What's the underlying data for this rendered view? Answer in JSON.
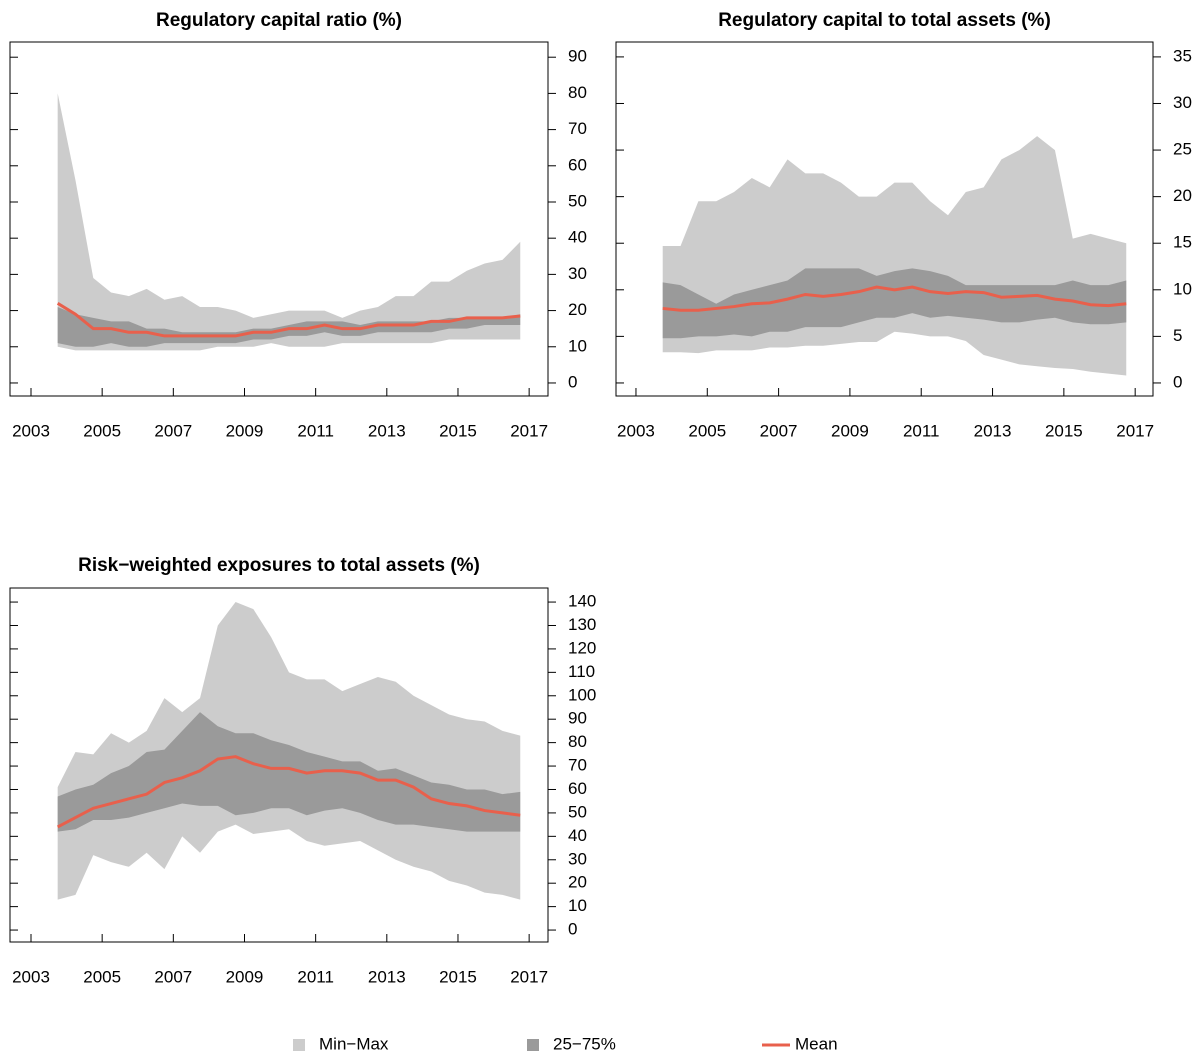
{
  "chart_data": [
    {
      "type": "band",
      "title": "Regulatory capital ratio (%)",
      "x": [
        2003.75,
        2004.25,
        2004.75,
        2005.25,
        2005.75,
        2006.25,
        2006.75,
        2007.25,
        2007.75,
        2008.25,
        2008.75,
        2009.25,
        2009.75,
        2010.25,
        2010.75,
        2011.25,
        2011.75,
        2012.25,
        2012.75,
        2013.25,
        2013.75,
        2014.25,
        2014.75,
        2015.25,
        2015.75,
        2016.25,
        2016.75
      ],
      "series": [
        {
          "name": "Min−Max",
          "color": "#cccccc",
          "low": [
            10,
            9,
            9,
            9,
            9,
            9,
            9,
            9,
            9,
            10,
            10,
            10,
            11,
            10,
            10,
            10,
            11,
            11,
            11,
            11,
            11,
            11,
            12,
            12,
            12,
            12,
            12
          ],
          "high": [
            80,
            56,
            29,
            25,
            24,
            26,
            23,
            24,
            21,
            21,
            20,
            18,
            19,
            20,
            20,
            20,
            18,
            20,
            21,
            24,
            24,
            28,
            28,
            31,
            33,
            34,
            39
          ]
        },
        {
          "name": "25−75%",
          "color": "#9a9a9a",
          "low": [
            11,
            10,
            10,
            11,
            10,
            10,
            11,
            11,
            11,
            11,
            11,
            12,
            12,
            13,
            13,
            14,
            13,
            13,
            14,
            14,
            14,
            14,
            15,
            15,
            16,
            16,
            16
          ],
          "high": [
            21,
            19,
            18,
            17,
            17,
            15,
            15,
            14,
            14,
            14,
            14,
            15,
            15,
            16,
            17,
            17,
            17,
            16,
            17,
            17,
            17,
            17,
            18,
            18,
            18,
            18,
            19
          ]
        },
        {
          "name": "Mean",
          "color": "#e8604c",
          "values": [
            22,
            19,
            15,
            15,
            14,
            14,
            13,
            13,
            13,
            13,
            13,
            14,
            14,
            15,
            15,
            16,
            15,
            15,
            16,
            16,
            16,
            17,
            17,
            18,
            18,
            18,
            18.5
          ]
        }
      ],
      "xlim": [
        2002.41,
        2017.53
      ],
      "xticks": [
        2003,
        2005,
        2007,
        2009,
        2011,
        2013,
        2015,
        2017
      ],
      "ylim": [
        -3.6,
        94.2
      ],
      "yticks": [
        0,
        10,
        20,
        30,
        40,
        50,
        60,
        70,
        80,
        90
      ]
    },
    {
      "type": "band",
      "title": "Regulatory capital to total assets (%)",
      "x": [
        2003.75,
        2004.25,
        2004.75,
        2005.25,
        2005.75,
        2006.25,
        2006.75,
        2007.25,
        2007.75,
        2008.25,
        2008.75,
        2009.25,
        2009.75,
        2010.25,
        2010.75,
        2011.25,
        2011.75,
        2012.25,
        2012.75,
        2013.25,
        2013.75,
        2014.25,
        2014.75,
        2015.25,
        2015.75,
        2016.25,
        2016.75
      ],
      "series": [
        {
          "name": "Min−Max",
          "color": "#cccccc",
          "low": [
            3.3,
            3.3,
            3.2,
            3.5,
            3.5,
            3.5,
            3.8,
            3.8,
            4,
            4,
            4.2,
            4.4,
            4.4,
            5.5,
            5.3,
            5,
            5,
            4.5,
            3,
            2.5,
            2,
            1.8,
            1.6,
            1.5,
            1.2,
            1,
            0.8
          ],
          "high": [
            14.7,
            14.7,
            19.5,
            19.5,
            20.5,
            22,
            21,
            24,
            22.5,
            22.5,
            21.5,
            20,
            20,
            21.5,
            21.5,
            19.5,
            18,
            20.5,
            21,
            24,
            25,
            26.5,
            25,
            15.5,
            16,
            15.5,
            15
          ]
        },
        {
          "name": "25−75%",
          "color": "#9a9a9a",
          "low": [
            4.8,
            4.8,
            5,
            5,
            5.2,
            5,
            5.5,
            5.5,
            6,
            6,
            6,
            6.5,
            7,
            7,
            7.5,
            7,
            7.2,
            7,
            6.8,
            6.5,
            6.5,
            6.8,
            7,
            6.5,
            6.3,
            6.3,
            6.5
          ],
          "high": [
            10.8,
            10.5,
            9.5,
            8.5,
            9.5,
            10,
            10.5,
            11,
            12.3,
            12.3,
            12.3,
            12.3,
            11.5,
            12,
            12.3,
            12,
            11.5,
            10.5,
            10.5,
            10.5,
            10.5,
            10.5,
            10.5,
            11,
            10.5,
            10.5,
            11
          ]
        },
        {
          "name": "Mean",
          "color": "#e8604c",
          "values": [
            8,
            7.8,
            7.8,
            8,
            8.2,
            8.5,
            8.6,
            9,
            9.5,
            9.3,
            9.5,
            9.8,
            10.3,
            10,
            10.3,
            9.8,
            9.6,
            9.8,
            9.7,
            9.2,
            9.3,
            9.4,
            9,
            8.8,
            8.4,
            8.3,
            8.5
          ]
        }
      ],
      "xlim": [
        2002.44,
        2017.5
      ],
      "xticks": [
        2003,
        2005,
        2007,
        2009,
        2011,
        2013,
        2015,
        2017
      ],
      "ylim": [
        -1.4,
        36.6
      ],
      "yticks": [
        0,
        5,
        10,
        15,
        20,
        25,
        30,
        35
      ]
    },
    {
      "type": "band",
      "title": "Risk−weighted exposures to total assets (%)",
      "x": [
        2003.75,
        2004.25,
        2004.75,
        2005.25,
        2005.75,
        2006.25,
        2006.75,
        2007.25,
        2007.75,
        2008.25,
        2008.75,
        2009.25,
        2009.75,
        2010.25,
        2010.75,
        2011.25,
        2011.75,
        2012.25,
        2012.75,
        2013.25,
        2013.75,
        2014.25,
        2014.75,
        2015.25,
        2015.75,
        2016.25,
        2016.75
      ],
      "series": [
        {
          "name": "Min−Max",
          "color": "#cccccc",
          "low": [
            13,
            15,
            32,
            29,
            27,
            33,
            26,
            40,
            33,
            42,
            45,
            41,
            42,
            43,
            38,
            36,
            37,
            38,
            34,
            30,
            27,
            25,
            21,
            19,
            16,
            15,
            13
          ],
          "high": [
            61,
            76,
            75,
            84,
            80,
            85,
            99,
            93,
            99,
            130,
            140,
            137,
            125,
            110,
            107,
            107,
            102,
            105,
            108,
            106,
            100,
            96,
            92,
            90,
            89,
            85,
            83
          ]
        },
        {
          "name": "25−75%",
          "color": "#9a9a9a",
          "low": [
            42,
            43,
            47,
            47,
            48,
            50,
            52,
            54,
            53,
            53,
            49,
            50,
            52,
            52,
            49,
            51,
            52,
            50,
            47,
            45,
            45,
            44,
            43,
            42,
            42,
            42,
            42
          ],
          "high": [
            57,
            60,
            62,
            67,
            70,
            76,
            77,
            85,
            93,
            87,
            84,
            84,
            81,
            79,
            76,
            74,
            72,
            72,
            68,
            69,
            66,
            63,
            62,
            60,
            60,
            58,
            59
          ]
        },
        {
          "name": "Mean",
          "color": "#e8604c",
          "values": [
            44,
            48,
            52,
            54,
            56,
            58,
            63,
            65,
            68,
            73,
            74,
            71,
            69,
            69,
            67,
            68,
            68,
            67,
            64,
            64,
            61,
            56,
            54,
            53,
            51,
            50,
            49
          ]
        }
      ],
      "xlim": [
        2002.41,
        2017.53
      ],
      "xticks": [
        2003,
        2005,
        2007,
        2009,
        2011,
        2013,
        2015,
        2017
      ],
      "ylim": [
        -5.1,
        146.0
      ],
      "yticks": [
        0,
        10,
        20,
        30,
        40,
        50,
        60,
        70,
        80,
        90,
        100,
        110,
        120,
        130,
        140
      ]
    }
  ]
}
